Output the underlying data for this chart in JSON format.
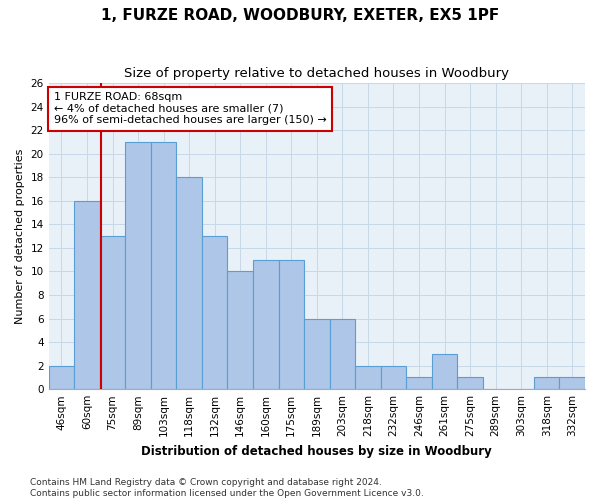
{
  "title": "1, FURZE ROAD, WOODBURY, EXETER, EX5 1PF",
  "subtitle": "Size of property relative to detached houses in Woodbury",
  "xlabel": "Distribution of detached houses by size in Woodbury",
  "ylabel": "Number of detached properties",
  "categories": [
    "46sqm",
    "60sqm",
    "75sqm",
    "89sqm",
    "103sqm",
    "118sqm",
    "132sqm",
    "146sqm",
    "160sqm",
    "175sqm",
    "189sqm",
    "203sqm",
    "218sqm",
    "232sqm",
    "246sqm",
    "261sqm",
    "275sqm",
    "289sqm",
    "303sqm",
    "318sqm",
    "332sqm"
  ],
  "values": [
    2,
    16,
    13,
    21,
    21,
    18,
    13,
    10,
    11,
    11,
    6,
    6,
    2,
    2,
    1,
    3,
    1,
    0,
    0,
    1,
    1
  ],
  "bar_color": "#aec6e8",
  "bar_edge_color": "#5a9fd4",
  "bar_linewidth": 0.8,
  "annotation_text": "1 FURZE ROAD: 68sqm\n← 4% of detached houses are smaller (7)\n96% of semi-detached houses are larger (150) →",
  "annotation_box_color": "white",
  "annotation_box_edge_color": "#cc0000",
  "annotation_fontsize": 8,
  "red_line_color": "#cc0000",
  "ylim": [
    0,
    26
  ],
  "yticks": [
    0,
    2,
    4,
    6,
    8,
    10,
    12,
    14,
    16,
    18,
    20,
    22,
    24,
    26
  ],
  "grid_color": "#c8d8e8",
  "bg_color": "#e8f0f8",
  "title_fontsize": 11,
  "subtitle_fontsize": 9.5,
  "xlabel_fontsize": 8.5,
  "ylabel_fontsize": 8,
  "tick_fontsize": 7.5,
  "footer_text": "Contains HM Land Registry data © Crown copyright and database right 2024.\nContains public sector information licensed under the Open Government Licence v3.0.",
  "footer_fontsize": 6.5
}
